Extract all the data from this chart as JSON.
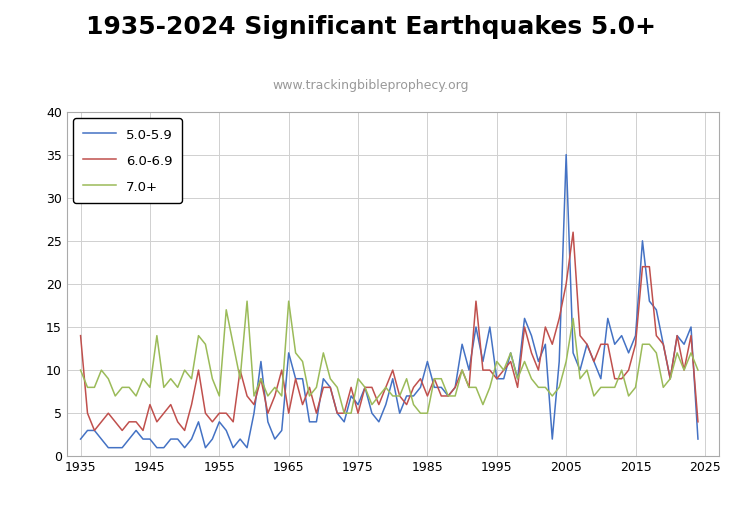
{
  "title": "1935-2024 Significant Earthquakes 5.0+",
  "subtitle": "www.trackingbibleprophecy.org",
  "title_fontsize": 18,
  "subtitle_fontsize": 9,
  "subtitle_color": "#999999",
  "years": [
    1935,
    1936,
    1937,
    1938,
    1939,
    1940,
    1941,
    1942,
    1943,
    1944,
    1945,
    1946,
    1947,
    1948,
    1949,
    1950,
    1951,
    1952,
    1953,
    1954,
    1955,
    1956,
    1957,
    1958,
    1959,
    1960,
    1961,
    1962,
    1963,
    1964,
    1965,
    1966,
    1967,
    1968,
    1969,
    1970,
    1971,
    1972,
    1973,
    1974,
    1975,
    1976,
    1977,
    1978,
    1979,
    1980,
    1981,
    1982,
    1983,
    1984,
    1985,
    1986,
    1987,
    1988,
    1989,
    1990,
    1991,
    1992,
    1993,
    1994,
    1995,
    1996,
    1997,
    1998,
    1999,
    2000,
    2001,
    2002,
    2003,
    2004,
    2005,
    2006,
    2007,
    2008,
    2009,
    2010,
    2011,
    2012,
    2013,
    2014,
    2015,
    2016,
    2017,
    2018,
    2019,
    2020,
    2021,
    2022,
    2023,
    2024
  ],
  "series_5_6": [
    2,
    3,
    3,
    2,
    1,
    1,
    1,
    2,
    3,
    2,
    2,
    1,
    1,
    2,
    2,
    1,
    2,
    4,
    1,
    2,
    4,
    3,
    1,
    2,
    1,
    5,
    11,
    4,
    2,
    3,
    12,
    9,
    9,
    4,
    4,
    9,
    8,
    5,
    4,
    7,
    6,
    8,
    5,
    4,
    6,
    9,
    5,
    7,
    7,
    8,
    11,
    8,
    8,
    7,
    8,
    13,
    10,
    15,
    11,
    15,
    9,
    9,
    12,
    9,
    16,
    14,
    11,
    13,
    2,
    11,
    35,
    12,
    10,
    13,
    11,
    9,
    16,
    13,
    14,
    12,
    14,
    25,
    18,
    17,
    13,
    9,
    14,
    13,
    15,
    2
  ],
  "series_6_7": [
    14,
    5,
    3,
    4,
    5,
    4,
    3,
    4,
    4,
    3,
    6,
    4,
    5,
    6,
    4,
    3,
    6,
    10,
    5,
    4,
    5,
    5,
    4,
    10,
    7,
    6,
    9,
    5,
    7,
    10,
    5,
    9,
    6,
    8,
    5,
    8,
    8,
    5,
    5,
    8,
    5,
    8,
    8,
    6,
    8,
    10,
    7,
    6,
    8,
    9,
    7,
    9,
    7,
    7,
    8,
    10,
    8,
    18,
    10,
    10,
    9,
    10,
    11,
    8,
    15,
    12,
    10,
    15,
    13,
    16,
    20,
    26,
    14,
    13,
    11,
    13,
    13,
    9,
    9,
    10,
    13,
    22,
    22,
    14,
    13,
    9,
    14,
    10,
    14,
    4
  ],
  "series_7plus": [
    10,
    8,
    8,
    10,
    9,
    7,
    8,
    8,
    7,
    9,
    8,
    14,
    8,
    9,
    8,
    10,
    9,
    14,
    13,
    9,
    7,
    17,
    13,
    9,
    18,
    7,
    9,
    7,
    8,
    7,
    18,
    12,
    11,
    7,
    8,
    12,
    9,
    8,
    5,
    5,
    9,
    8,
    6,
    7,
    8,
    7,
    7,
    9,
    6,
    5,
    5,
    9,
    9,
    7,
    7,
    10,
    8,
    8,
    6,
    8,
    11,
    10,
    12,
    9,
    11,
    9,
    8,
    8,
    7,
    8,
    11,
    16,
    9,
    10,
    7,
    8,
    8,
    8,
    10,
    7,
    8,
    13,
    13,
    12,
    8,
    9,
    12,
    10,
    12,
    10
  ],
  "color_5_6": "#4472C4",
  "color_6_7": "#C0504D",
  "color_7plus": "#9BBB59",
  "ylim": [
    0,
    40
  ],
  "yticks": [
    0,
    5,
    10,
    15,
    20,
    25,
    30,
    35,
    40
  ],
  "xticks": [
    1935,
    1945,
    1955,
    1965,
    1975,
    1985,
    1995,
    2005,
    2015,
    2025
  ],
  "xlim": [
    1933,
    2027
  ],
  "legend_labels": [
    "5.0-5.9",
    "6.0-6.9",
    "7.0+"
  ],
  "grid_color": "#D0D0D0",
  "bg_color": "#FFFFFF",
  "linewidth": 1.1
}
